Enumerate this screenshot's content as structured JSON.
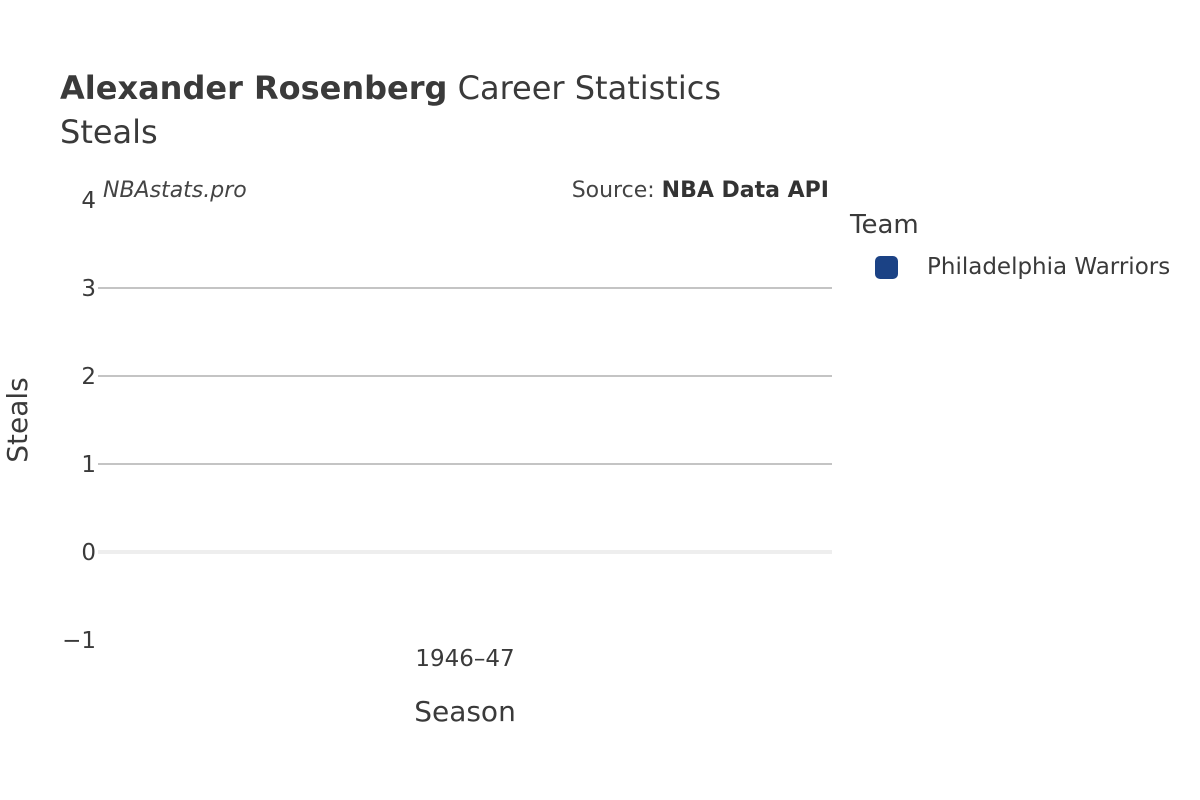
{
  "header": {
    "title_name": "Alexander Rosenberg",
    "title_rest": " Career Statistics",
    "subtitle": "Steals"
  },
  "watermark": "NBAstats.pro",
  "source": {
    "label": "Source: ",
    "value": "NBA Data API"
  },
  "legend": {
    "title": "Team",
    "items": [
      {
        "label": "Philadelphia Warriors",
        "color": "#1b4285"
      }
    ]
  },
  "chart_data": {
    "type": "bar",
    "categories": [
      "1946–47"
    ],
    "series": [
      {
        "name": "Philadelphia Warriors",
        "values": [
          0
        ],
        "color": "#1b4285"
      }
    ],
    "xlabel": "Season",
    "ylabel": "Steals",
    "ylim": [
      -1,
      4
    ],
    "yticks": [
      -1,
      0,
      1,
      2,
      3,
      4
    ],
    "grid": true
  }
}
